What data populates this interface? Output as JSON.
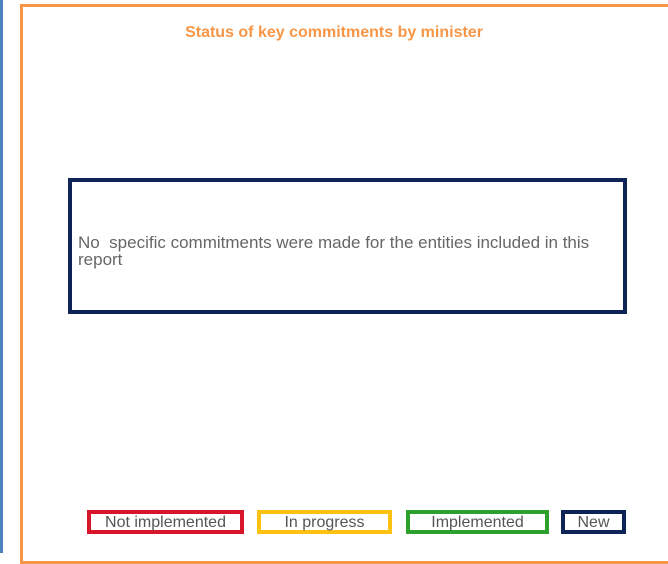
{
  "title": "Status of key commitments by minister",
  "message": "No  specific commitments were made for the entities included in this report",
  "legend": [
    "Not implemented",
    "In progress",
    "Implemented",
    "New"
  ]
}
